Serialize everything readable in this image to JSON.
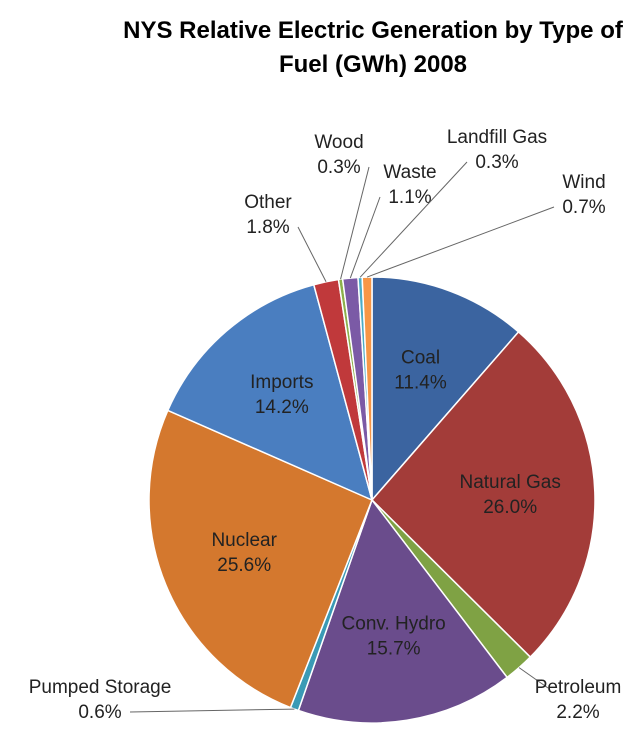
{
  "chart_data": {
    "type": "pie",
    "title": "NYS Relative Electric Generation by Type of Fuel (GWh) 2008",
    "categories": [
      "Coal",
      "Natural Gas",
      "Petroleum",
      "Conv. Hydro",
      "Pumped Storage",
      "Nuclear",
      "Imports",
      "Other",
      "Wood",
      "Waste",
      "Landfill Gas",
      "Wind"
    ],
    "values": [
      11.4,
      26.0,
      2.2,
      15.7,
      0.6,
      25.6,
      14.2,
      1.8,
      0.3,
      1.1,
      0.3,
      0.7
    ],
    "value_labels": [
      "11.4%",
      "26.0%",
      "2.2%",
      "15.7%",
      "0.6%",
      "25.6%",
      "14.2%",
      "1.8%",
      "0.3%",
      "1.1%",
      "0.3%",
      "0.7%"
    ],
    "colors": [
      "#3b64a0",
      "#a33c39",
      "#7fa244",
      "#6a4c8c",
      "#3a9ab5",
      "#d4782e",
      "#4a7ec0",
      "#c0393b",
      "#8cb04a",
      "#7b5aa6",
      "#4bacc6",
      "#f79646"
    ]
  }
}
